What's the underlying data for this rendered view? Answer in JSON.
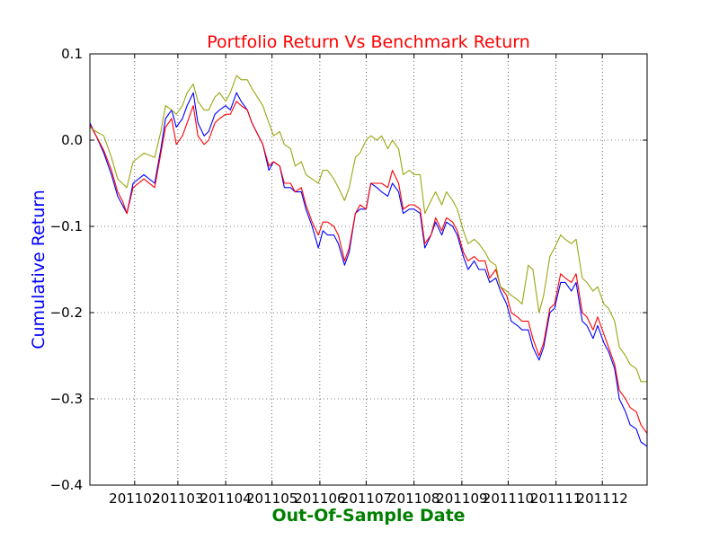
{
  "chart_data": {
    "type": "line",
    "title": "Portfolio Return Vs Benchmark Return",
    "xlabel": "Out-Of-Sample Date",
    "ylabel": "Cumulative Return",
    "colors": {
      "title": "#ff0000",
      "xlabel": "#008000",
      "ylabel": "#0000ff"
    },
    "grid": true,
    "legend": "none",
    "ylim": [
      -0.4,
      0.1
    ],
    "yticks": [
      0.1,
      0.0,
      -0.1,
      -0.2,
      -0.3,
      -0.4
    ],
    "ytick_labels": [
      "0.1",
      "0.0",
      "−0.1",
      "−0.2",
      "−0.3",
      "−0.4"
    ],
    "xlim": [
      "2011-01-03",
      "2011-12-30"
    ],
    "xticks": [
      "2011-02-01",
      "2011-03-01",
      "2011-04-01",
      "2011-05-01",
      "2011-06-01",
      "2011-07-01",
      "2011-08-01",
      "2011-09-01",
      "2011-10-01",
      "2011-11-01",
      "2011-12-01"
    ],
    "xtick_labels": [
      "201102",
      "201103",
      "201104",
      "201105",
      "201106",
      "201107",
      "201108",
      "201109",
      "201110",
      "201111",
      "201112"
    ],
    "series": [
      {
        "color": "#0000ff",
        "x": [
          "2011-01-03",
          "2011-01-07",
          "2011-01-12",
          "2011-01-17",
          "2011-01-21",
          "2011-01-24",
          "2011-01-27",
          "2011-01-31",
          "2011-02-07",
          "2011-02-14",
          "2011-02-18",
          "2011-02-21",
          "2011-02-25",
          "2011-02-28",
          "2011-03-04",
          "2011-03-07",
          "2011-03-11",
          "2011-03-14",
          "2011-03-18",
          "2011-03-21",
          "2011-03-25",
          "2011-03-28",
          "2011-04-01",
          "2011-04-04",
          "2011-04-08",
          "2011-04-11",
          "2011-04-15",
          "2011-04-18",
          "2011-04-25",
          "2011-04-29",
          "2011-05-02",
          "2011-05-06",
          "2011-05-09",
          "2011-05-13",
          "2011-05-16",
          "2011-05-20",
          "2011-05-23",
          "2011-05-27",
          "2011-05-31",
          "2011-06-03",
          "2011-06-06",
          "2011-06-10",
          "2011-06-13",
          "2011-06-17",
          "2011-06-20",
          "2011-06-24",
          "2011-06-27",
          "2011-07-01",
          "2011-07-04",
          "2011-07-08",
          "2011-07-11",
          "2011-07-15",
          "2011-07-18",
          "2011-07-22",
          "2011-07-25",
          "2011-07-29",
          "2011-08-01",
          "2011-08-05",
          "2011-08-08",
          "2011-08-12",
          "2011-08-15",
          "2011-08-19",
          "2011-08-22",
          "2011-08-26",
          "2011-08-29",
          "2011-09-02",
          "2011-09-05",
          "2011-09-09",
          "2011-09-12",
          "2011-09-16",
          "2011-09-19",
          "2011-09-23",
          "2011-09-26",
          "2011-09-30",
          "2011-10-03",
          "2011-10-07",
          "2011-10-10",
          "2011-10-14",
          "2011-10-17",
          "2011-10-21",
          "2011-10-24",
          "2011-10-28",
          "2011-10-31",
          "2011-11-04",
          "2011-11-07",
          "2011-11-11",
          "2011-11-14",
          "2011-11-18",
          "2011-11-21",
          "2011-11-25",
          "2011-11-28",
          "2011-12-02",
          "2011-12-05",
          "2011-12-09",
          "2011-12-12",
          "2011-12-16",
          "2011-12-19",
          "2011-12-23",
          "2011-12-26",
          "2011-12-30"
        ],
        "values": [
          0.02,
          0.005,
          -0.015,
          -0.04,
          -0.065,
          -0.075,
          -0.085,
          -0.05,
          -0.04,
          -0.05,
          -0.01,
          0.025,
          0.035,
          0.015,
          0.025,
          0.04,
          0.055,
          0.02,
          0.005,
          0.01,
          0.03,
          0.035,
          0.04,
          0.035,
          0.055,
          0.045,
          0.035,
          0.02,
          -0.005,
          -0.035,
          -0.025,
          -0.03,
          -0.055,
          -0.055,
          -0.06,
          -0.06,
          -0.08,
          -0.1,
          -0.125,
          -0.105,
          -0.11,
          -0.11,
          -0.12,
          -0.145,
          -0.13,
          -0.085,
          -0.08,
          -0.08,
          -0.05,
          -0.055,
          -0.06,
          -0.065,
          -0.05,
          -0.06,
          -0.085,
          -0.08,
          -0.08,
          -0.085,
          -0.125,
          -0.11,
          -0.095,
          -0.11,
          -0.095,
          -0.1,
          -0.11,
          -0.135,
          -0.15,
          -0.14,
          -0.15,
          -0.15,
          -0.165,
          -0.16,
          -0.175,
          -0.19,
          -0.21,
          -0.215,
          -0.22,
          -0.22,
          -0.24,
          -0.255,
          -0.24,
          -0.2,
          -0.195,
          -0.165,
          -0.165,
          -0.175,
          -0.165,
          -0.21,
          -0.215,
          -0.23,
          -0.215,
          -0.235,
          -0.245,
          -0.265,
          -0.3,
          -0.315,
          -0.33,
          -0.335,
          -0.35,
          -0.355
        ]
      },
      {
        "color": "#ff0000",
        "x": [
          "2011-01-03",
          "2011-01-07",
          "2011-01-12",
          "2011-01-17",
          "2011-01-21",
          "2011-01-24",
          "2011-01-27",
          "2011-01-31",
          "2011-02-07",
          "2011-02-14",
          "2011-02-18",
          "2011-02-21",
          "2011-02-25",
          "2011-02-28",
          "2011-03-04",
          "2011-03-07",
          "2011-03-11",
          "2011-03-14",
          "2011-03-18",
          "2011-03-21",
          "2011-03-25",
          "2011-03-28",
          "2011-04-01",
          "2011-04-04",
          "2011-04-08",
          "2011-04-11",
          "2011-04-15",
          "2011-04-18",
          "2011-04-25",
          "2011-04-29",
          "2011-05-02",
          "2011-05-06",
          "2011-05-09",
          "2011-05-13",
          "2011-05-16",
          "2011-05-20",
          "2011-05-23",
          "2011-05-27",
          "2011-05-31",
          "2011-06-03",
          "2011-06-06",
          "2011-06-10",
          "2011-06-13",
          "2011-06-17",
          "2011-06-20",
          "2011-06-24",
          "2011-06-27",
          "2011-07-01",
          "2011-07-04",
          "2011-07-08",
          "2011-07-11",
          "2011-07-15",
          "2011-07-18",
          "2011-07-22",
          "2011-07-25",
          "2011-07-29",
          "2011-08-01",
          "2011-08-05",
          "2011-08-08",
          "2011-08-12",
          "2011-08-15",
          "2011-08-19",
          "2011-08-22",
          "2011-08-26",
          "2011-08-29",
          "2011-09-02",
          "2011-09-05",
          "2011-09-09",
          "2011-09-12",
          "2011-09-16",
          "2011-09-19",
          "2011-09-23",
          "2011-09-26",
          "2011-09-30",
          "2011-10-03",
          "2011-10-07",
          "2011-10-10",
          "2011-10-14",
          "2011-10-17",
          "2011-10-21",
          "2011-10-24",
          "2011-10-28",
          "2011-10-31",
          "2011-11-04",
          "2011-11-07",
          "2011-11-11",
          "2011-11-14",
          "2011-11-18",
          "2011-11-21",
          "2011-11-25",
          "2011-11-28",
          "2011-12-02",
          "2011-12-05",
          "2011-12-09",
          "2011-12-12",
          "2011-12-16",
          "2011-12-19",
          "2011-12-23",
          "2011-12-26",
          "2011-12-30"
        ],
        "values": [
          0.018,
          0.005,
          -0.012,
          -0.035,
          -0.06,
          -0.07,
          -0.085,
          -0.055,
          -0.045,
          -0.055,
          -0.015,
          0.015,
          0.025,
          -0.005,
          0.005,
          0.02,
          0.04,
          0.005,
          -0.005,
          0.0,
          0.02,
          0.025,
          0.03,
          0.03,
          0.045,
          0.04,
          0.035,
          0.02,
          -0.005,
          -0.03,
          -0.025,
          -0.03,
          -0.05,
          -0.05,
          -0.06,
          -0.055,
          -0.075,
          -0.095,
          -0.11,
          -0.095,
          -0.095,
          -0.1,
          -0.11,
          -0.14,
          -0.125,
          -0.085,
          -0.075,
          -0.08,
          -0.05,
          -0.05,
          -0.05,
          -0.055,
          -0.035,
          -0.05,
          -0.08,
          -0.075,
          -0.075,
          -0.08,
          -0.12,
          -0.11,
          -0.09,
          -0.105,
          -0.09,
          -0.095,
          -0.105,
          -0.13,
          -0.14,
          -0.135,
          -0.14,
          -0.14,
          -0.16,
          -0.15,
          -0.17,
          -0.18,
          -0.2,
          -0.205,
          -0.21,
          -0.21,
          -0.23,
          -0.25,
          -0.235,
          -0.195,
          -0.19,
          -0.155,
          -0.16,
          -0.165,
          -0.155,
          -0.2,
          -0.205,
          -0.22,
          -0.205,
          -0.225,
          -0.24,
          -0.26,
          -0.29,
          -0.3,
          -0.31,
          -0.315,
          -0.33,
          -0.34
        ]
      },
      {
        "color": "#9aa60f",
        "x": [
          "2011-01-03",
          "2011-01-07",
          "2011-01-12",
          "2011-01-17",
          "2011-01-21",
          "2011-01-24",
          "2011-01-27",
          "2011-01-31",
          "2011-02-07",
          "2011-02-14",
          "2011-02-18",
          "2011-02-21",
          "2011-02-25",
          "2011-02-28",
          "2011-03-04",
          "2011-03-07",
          "2011-03-11",
          "2011-03-14",
          "2011-03-18",
          "2011-03-21",
          "2011-03-25",
          "2011-03-28",
          "2011-04-01",
          "2011-04-04",
          "2011-04-08",
          "2011-04-11",
          "2011-04-15",
          "2011-04-18",
          "2011-04-25",
          "2011-04-29",
          "2011-05-02",
          "2011-05-06",
          "2011-05-09",
          "2011-05-13",
          "2011-05-16",
          "2011-05-20",
          "2011-05-23",
          "2011-05-27",
          "2011-05-31",
          "2011-06-03",
          "2011-06-06",
          "2011-06-10",
          "2011-06-13",
          "2011-06-17",
          "2011-06-20",
          "2011-06-24",
          "2011-06-27",
          "2011-07-01",
          "2011-07-04",
          "2011-07-08",
          "2011-07-11",
          "2011-07-15",
          "2011-07-18",
          "2011-07-22",
          "2011-07-25",
          "2011-07-29",
          "2011-08-01",
          "2011-08-05",
          "2011-08-08",
          "2011-08-12",
          "2011-08-15",
          "2011-08-19",
          "2011-08-22",
          "2011-08-26",
          "2011-08-29",
          "2011-09-02",
          "2011-09-05",
          "2011-09-09",
          "2011-09-12",
          "2011-09-16",
          "2011-09-19",
          "2011-09-23",
          "2011-09-26",
          "2011-09-30",
          "2011-10-03",
          "2011-10-07",
          "2011-10-10",
          "2011-10-14",
          "2011-10-17",
          "2011-10-21",
          "2011-10-24",
          "2011-10-28",
          "2011-10-31",
          "2011-11-04",
          "2011-11-07",
          "2011-11-11",
          "2011-11-14",
          "2011-11-18",
          "2011-11-21",
          "2011-11-25",
          "2011-11-28",
          "2011-12-02",
          "2011-12-05",
          "2011-12-09",
          "2011-12-12",
          "2011-12-16",
          "2011-12-19",
          "2011-12-23",
          "2011-12-26",
          "2011-12-30"
        ],
        "values": [
          0.015,
          0.01,
          0.005,
          -0.02,
          -0.045,
          -0.05,
          -0.055,
          -0.025,
          -0.015,
          -0.02,
          0.01,
          0.04,
          0.035,
          0.03,
          0.04,
          0.055,
          0.065,
          0.045,
          0.035,
          0.035,
          0.05,
          0.055,
          0.045,
          0.055,
          0.075,
          0.07,
          0.07,
          0.06,
          0.04,
          0.02,
          0.005,
          0.01,
          -0.005,
          -0.01,
          -0.03,
          -0.025,
          -0.04,
          -0.045,
          -0.05,
          -0.035,
          -0.035,
          -0.045,
          -0.055,
          -0.07,
          -0.055,
          -0.02,
          -0.015,
          0.0,
          0.005,
          0.0,
          0.005,
          -0.01,
          0.0,
          -0.01,
          -0.04,
          -0.035,
          -0.04,
          -0.04,
          -0.085,
          -0.07,
          -0.06,
          -0.075,
          -0.06,
          -0.07,
          -0.08,
          -0.105,
          -0.12,
          -0.115,
          -0.12,
          -0.13,
          -0.14,
          -0.145,
          -0.17,
          -0.175,
          -0.18,
          -0.185,
          -0.19,
          -0.145,
          -0.15,
          -0.2,
          -0.18,
          -0.135,
          -0.125,
          -0.11,
          -0.115,
          -0.12,
          -0.115,
          -0.16,
          -0.165,
          -0.175,
          -0.17,
          -0.19,
          -0.195,
          -0.21,
          -0.24,
          -0.25,
          -0.26,
          -0.265,
          -0.28,
          -0.28
        ]
      }
    ]
  }
}
